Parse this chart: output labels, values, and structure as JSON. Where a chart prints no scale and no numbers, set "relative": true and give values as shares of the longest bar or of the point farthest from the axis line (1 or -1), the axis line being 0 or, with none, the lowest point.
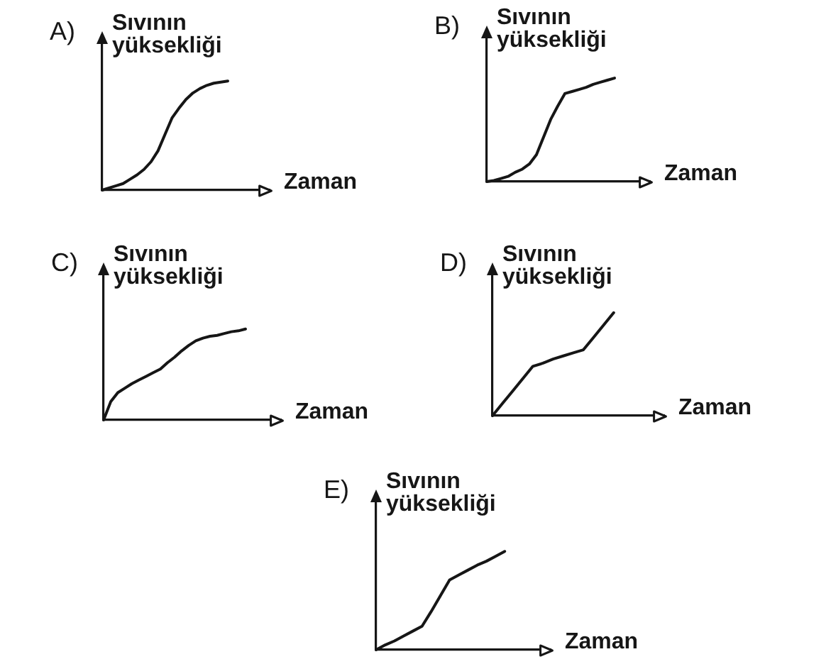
{
  "chart_data": [
    {
      "type": "line",
      "title": "A)",
      "ylabel": "Sıvının yüksekliği",
      "xlabel": "Zaman",
      "relative": true,
      "tick_labels": false,
      "color": "#161616",
      "categories": [
        null,
        null,
        null,
        null,
        null,
        null,
        null,
        null,
        null,
        null,
        null,
        null,
        null,
        null,
        null,
        null,
        null,
        null,
        null,
        null,
        null,
        null,
        null,
        null,
        null
      ],
      "values": [
        0,
        0.02,
        0.04,
        0.06,
        0.1,
        0.14,
        0.19,
        0.26,
        0.36,
        0.51,
        0.66,
        0.75,
        0.83,
        0.89,
        0.93,
        0.96,
        0.98,
        0.99,
        1,
        null,
        null,
        null,
        null,
        null,
        null
      ]
    },
    {
      "type": "line",
      "title": "B)",
      "ylabel": "Sıvının yüksekliği",
      "xlabel": "Zaman",
      "relative": true,
      "tick_labels": false,
      "color": "#161616",
      "categories": [
        null,
        null,
        null,
        null,
        null,
        null,
        null,
        null,
        null,
        null,
        null,
        null,
        null,
        null,
        null,
        null,
        null,
        null,
        null,
        null,
        null,
        null,
        null,
        null
      ],
      "values": [
        0,
        0.01,
        0.03,
        0.05,
        0.09,
        0.12,
        0.17,
        0.26,
        0.43,
        0.6,
        0.73,
        0.85,
        0.87,
        0.89,
        0.91,
        0.94,
        0.96,
        0.98,
        1,
        null,
        null,
        null,
        null,
        null
      ]
    },
    {
      "type": "line",
      "title": "C)",
      "ylabel": "Sıvının yüksekliği",
      "xlabel": "Zaman",
      "relative": true,
      "tick_labels": false,
      "color": "#161616",
      "categories": [
        null,
        null,
        null,
        null,
        null,
        null,
        null,
        null,
        null,
        null,
        null,
        null,
        null,
        null,
        null,
        null,
        null,
        null,
        null,
        null,
        null,
        null,
        null,
        null,
        null,
        null
      ],
      "values": [
        0,
        0.2,
        0.3,
        0.35,
        0.4,
        0.44,
        0.48,
        0.52,
        0.56,
        0.63,
        0.69,
        0.76,
        0.82,
        0.87,
        0.9,
        0.92,
        0.93,
        0.95,
        0.97,
        0.98,
        1,
        null,
        null,
        null,
        null,
        null
      ]
    },
    {
      "type": "line",
      "title": "D)",
      "ylabel": "Sıvının yüksekliği",
      "xlabel": "Zaman",
      "relative": true,
      "tick_labels": false,
      "color": "#161616",
      "categories": [
        null,
        null,
        null,
        null,
        null,
        null,
        null,
        null,
        null,
        null,
        null,
        null,
        null,
        null,
        null,
        null,
        null,
        null
      ],
      "values": [
        0,
        0.12,
        0.24,
        0.36,
        0.48,
        0.51,
        0.55,
        0.58,
        0.61,
        0.64,
        0.76,
        0.88,
        1,
        null,
        null,
        null,
        null,
        null
      ]
    },
    {
      "type": "line",
      "title": "E)",
      "ylabel": "Sıvının yüksekliği",
      "xlabel": "Zaman",
      "relative": true,
      "tick_labels": false,
      "color": "#161616",
      "categories": [
        null,
        null,
        null,
        null,
        null,
        null,
        null,
        null,
        null,
        null,
        null,
        null,
        null,
        null,
        null,
        null,
        null,
        null,
        null,
        null
      ],
      "values": [
        0,
        0.05,
        0.09,
        0.14,
        0.19,
        0.24,
        0.39,
        0.55,
        0.71,
        0.76,
        0.81,
        0.86,
        0.9,
        0.95,
        1,
        null,
        null,
        null,
        null,
        null
      ]
    }
  ]
}
